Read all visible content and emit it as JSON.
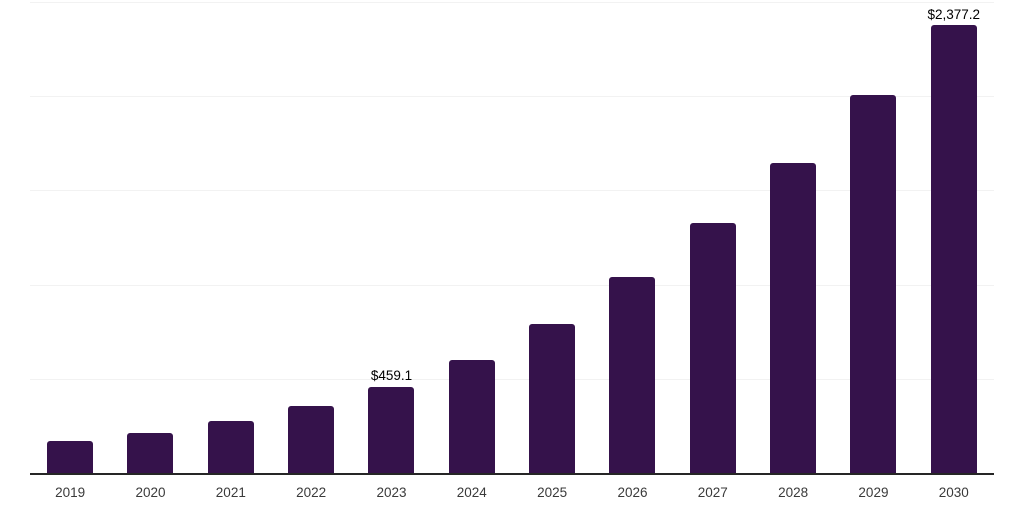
{
  "chart_data": {
    "type": "bar",
    "title": "",
    "xlabel": "",
    "ylabel": "",
    "categories": [
      "2019",
      "2020",
      "2021",
      "2022",
      "2023",
      "2024",
      "2025",
      "2026",
      "2027",
      "2028",
      "2029",
      "2030"
    ],
    "values": [
      170,
      214,
      276,
      358,
      459.1,
      599,
      789,
      1040,
      1329,
      1648,
      2005,
      2377.2
    ],
    "value_labels": [
      "",
      "",
      "",
      "",
      "$459.1",
      "",
      "",
      "",
      "",
      "",
      "",
      "$2,377.2"
    ],
    "ylim": [
      0,
      2500
    ],
    "gridline_values": [
      500,
      1000,
      1500,
      2000,
      2500
    ],
    "grid": "horizontal-only",
    "legend": "none",
    "y_axis_tick_labels_visible": false,
    "colors": {
      "bar": "#35124B",
      "gridline": "#f2f2f2",
      "axis_line": "#262626",
      "tick_label": "#3a3a3a",
      "value_label": "#000000",
      "background": "#ffffff"
    }
  }
}
